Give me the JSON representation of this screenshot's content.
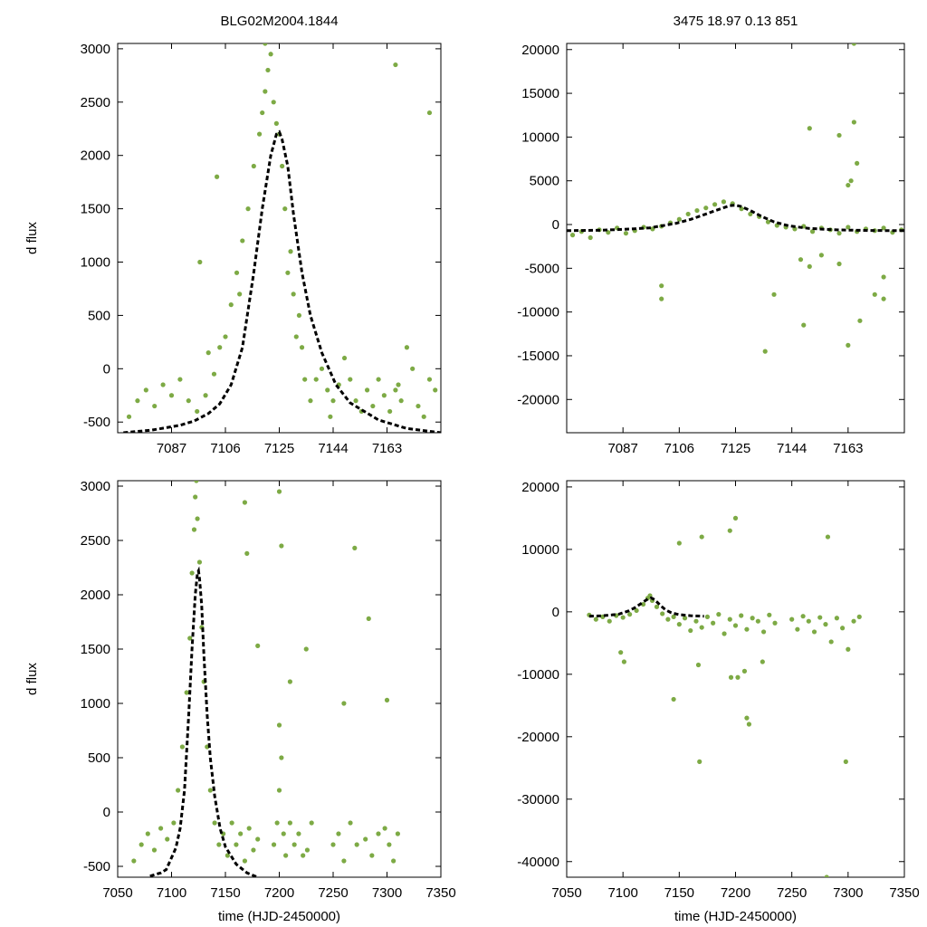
{
  "chart_data": [
    {
      "type": "scatter",
      "panel": "top-left",
      "title": "BLG02M2004.1844",
      "xlabel": "",
      "ylabel": "d flux",
      "xlim": [
        7068,
        7182
      ],
      "ylim": [
        -600,
        3050
      ],
      "xticks": [
        7087,
        7106,
        7125,
        7144,
        7163
      ],
      "yticks": [
        -500,
        0,
        500,
        1000,
        1500,
        2000,
        2500,
        3000
      ],
      "series": [
        {
          "name": "observations",
          "style": "points",
          "color": "#7daa45",
          "x": [
            7072,
            7075,
            7078,
            7081,
            7084,
            7087,
            7090,
            7093,
            7096,
            7099,
            7100,
            7102,
            7104,
            7106,
            7108,
            7110,
            7112,
            7114,
            7116,
            7118,
            7119,
            7120,
            7121,
            7122,
            7123,
            7124,
            7125,
            7126,
            7127,
            7128,
            7129,
            7130,
            7131,
            7132,
            7133,
            7134,
            7136,
            7138,
            7140,
            7142,
            7144,
            7146,
            7148,
            7150,
            7152,
            7154,
            7156,
            7158,
            7160,
            7162,
            7164,
            7166,
            7168,
            7170,
            7172,
            7174,
            7176,
            7178,
            7180,
            7097,
            7103,
            7111,
            7120,
            7143,
            7166,
            7178,
            7167
          ],
          "y": [
            -450,
            -300,
            -200,
            -350,
            -150,
            -250,
            -100,
            -300,
            -400,
            -250,
            150,
            -50,
            200,
            300,
            600,
            900,
            1200,
            1500,
            1900,
            2200,
            2400,
            2600,
            2800,
            2950,
            2500,
            2300,
            2200,
            1900,
            1500,
            900,
            1100,
            700,
            300,
            500,
            200,
            -100,
            -300,
            -100,
            0,
            -200,
            -300,
            -150,
            100,
            -100,
            -300,
            -400,
            -200,
            -350,
            -100,
            -250,
            -400,
            -200,
            -300,
            200,
            0,
            -350,
            -450,
            -100,
            -200,
            1000,
            1800,
            700,
            3050,
            -450,
            2850,
            2400,
            -150
          ]
        },
        {
          "name": "model",
          "style": "dashed-line",
          "color": "#000000",
          "x": [
            7070,
            7080,
            7090,
            7095,
            7100,
            7104,
            7108,
            7112,
            7116,
            7119,
            7122,
            7124,
            7125,
            7126,
            7128,
            7130,
            7133,
            7136,
            7140,
            7145,
            7150,
            7160,
            7170,
            7182
          ],
          "y": [
            -600,
            -575,
            -530,
            -490,
            -420,
            -330,
            -150,
            200,
            900,
            1500,
            2000,
            2200,
            2220,
            2150,
            1900,
            1450,
            900,
            500,
            150,
            -150,
            -320,
            -480,
            -560,
            -600
          ]
        }
      ]
    },
    {
      "type": "scatter",
      "panel": "top-right",
      "title": "3475  18.97  0.13  851",
      "xlabel": "",
      "ylabel": "",
      "xlim": [
        7068,
        7182
      ],
      "ylim": [
        -23800,
        20700
      ],
      "xticks": [
        7087,
        7106,
        7125,
        7144,
        7163
      ],
      "yticks": [
        -20000,
        -15000,
        -10000,
        -5000,
        0,
        5000,
        10000,
        15000,
        20000
      ],
      "series": [
        {
          "name": "observations",
          "style": "points",
          "color": "#7daa45",
          "x": [
            7070,
            7073,
            7076,
            7079,
            7082,
            7085,
            7088,
            7091,
            7094,
            7097,
            7100,
            7103,
            7106,
            7109,
            7112,
            7115,
            7118,
            7121,
            7124,
            7127,
            7130,
            7133,
            7136,
            7139,
            7142,
            7145,
            7148,
            7151,
            7154,
            7157,
            7160,
            7163,
            7166,
            7169,
            7172,
            7175,
            7178,
            7181,
            7100,
            7100,
            7135,
            7138,
            7148,
            7150,
            7147,
            7160,
            7163,
            7164,
            7165,
            7166,
            7167,
            7172,
            7175,
            7175,
            7150,
            7163,
            7160,
            7154,
            7165
          ],
          "y": [
            -1200,
            -800,
            -1500,
            -600,
            -900,
            -400,
            -1000,
            -700,
            -300,
            -500,
            -200,
            200,
            600,
            1200,
            1600,
            1900,
            2300,
            2600,
            2400,
            1800,
            1200,
            900,
            300,
            -100,
            -300,
            -500,
            -200,
            -800,
            -400,
            -600,
            -1000,
            -300,
            -800,
            -500,
            -700,
            -400,
            -900,
            -600,
            -7000,
            -8500,
            -14500,
            -8000,
            -11500,
            11000,
            -4000,
            10200,
            4500,
            5000,
            11700,
            7000,
            -11000,
            -8000,
            -8500,
            -6000,
            -4800,
            -13800,
            -4500,
            -3500,
            20700
          ]
        },
        {
          "name": "model",
          "style": "dashed-line",
          "color": "#000000",
          "x": [
            7068,
            7080,
            7090,
            7096,
            7100,
            7105,
            7110,
            7115,
            7120,
            7123,
            7125,
            7127,
            7130,
            7134,
            7138,
            7143,
            7150,
            7160,
            7170,
            7182
          ],
          "y": [
            -700,
            -650,
            -500,
            -380,
            -150,
            150,
            600,
            1200,
            1800,
            2150,
            2220,
            2050,
            1600,
            900,
            300,
            -150,
            -450,
            -620,
            -680,
            -700
          ]
        }
      ]
    },
    {
      "type": "scatter",
      "panel": "bottom-left",
      "title": "",
      "xlabel": "time (HJD-2450000)",
      "ylabel": "d flux",
      "xlim": [
        7050,
        7350
      ],
      "ylim": [
        -600,
        3050
      ],
      "xticks": [
        7050,
        7100,
        7150,
        7200,
        7250,
        7300,
        7350
      ],
      "yticks": [
        -500,
        0,
        500,
        1000,
        1500,
        2000,
        2500,
        3000
      ],
      "series": [
        {
          "name": "observations",
          "style": "points",
          "color": "#7daa45",
          "x": [
            7065,
            7072,
            7078,
            7084,
            7090,
            7096,
            7102,
            7106,
            7110,
            7114,
            7117,
            7119,
            7121,
            7122,
            7123,
            7124,
            7126,
            7128,
            7130,
            7133,
            7136,
            7140,
            7144,
            7148,
            7152,
            7156,
            7160,
            7164,
            7168,
            7172,
            7176,
            7180,
            7195,
            7198,
            7200,
            7202,
            7204,
            7206,
            7210,
            7214,
            7218,
            7222,
            7226,
            7230,
            7250,
            7255,
            7260,
            7266,
            7272,
            7280,
            7286,
            7292,
            7298,
            7302,
            7306,
            7310,
            7168,
            7170,
            7200,
            7202,
            7210,
            7225,
            7200,
            7270,
            7283,
            7300,
            7260,
            7180
          ],
          "y": [
            -450,
            -300,
            -200,
            -350,
            -150,
            -250,
            -100,
            200,
            600,
            1100,
            1600,
            2200,
            2600,
            2900,
            3050,
            2700,
            2300,
            1700,
            1200,
            600,
            200,
            -100,
            -300,
            -200,
            -400,
            -100,
            -300,
            -200,
            -450,
            -150,
            -350,
            -250,
            -300,
            -100,
            200,
            500,
            -200,
            -400,
            -100,
            -300,
            -200,
            -400,
            -350,
            -100,
            -300,
            -200,
            -450,
            -100,
            -300,
            -250,
            -400,
            -200,
            -150,
            -300,
            -450,
            -200,
            2850,
            2380,
            2950,
            2450,
            1200,
            1500,
            800,
            2430,
            1780,
            1030,
            1000,
            1530
          ]
        },
        {
          "name": "model",
          "style": "dashed-line",
          "color": "#000000",
          "x": [
            7080,
            7090,
            7095,
            7100,
            7104,
            7108,
            7112,
            7116,
            7119,
            7122,
            7124,
            7125,
            7126,
            7128,
            7130,
            7133,
            7136,
            7140,
            7145,
            7150,
            7160,
            7170,
            7180
          ],
          "y": [
            -590,
            -560,
            -530,
            -420,
            -330,
            -150,
            200,
            900,
            1500,
            2000,
            2200,
            2220,
            2150,
            1900,
            1450,
            900,
            500,
            150,
            -150,
            -320,
            -480,
            -560,
            -600
          ]
        }
      ]
    },
    {
      "type": "scatter",
      "panel": "bottom-right",
      "title": "",
      "xlabel": "time (HJD-2450000)",
      "ylabel": "",
      "xlim": [
        7050,
        7350
      ],
      "ylim": [
        -42500,
        21000
      ],
      "xticks": [
        7050,
        7100,
        7150,
        7200,
        7250,
        7300,
        7350
      ],
      "yticks": [
        -40000,
        -30000,
        -20000,
        -10000,
        0,
        10000,
        20000
      ],
      "series": [
        {
          "name": "observations",
          "style": "points",
          "color": "#7daa45",
          "x": [
            7070,
            7076,
            7082,
            7088,
            7094,
            7100,
            7106,
            7112,
            7118,
            7122,
            7124,
            7126,
            7130,
            7135,
            7140,
            7145,
            7150,
            7155,
            7160,
            7165,
            7170,
            7175,
            7180,
            7185,
            7190,
            7195,
            7200,
            7205,
            7210,
            7215,
            7220,
            7225,
            7230,
            7235,
            7250,
            7255,
            7260,
            7265,
            7270,
            7275,
            7280,
            7285,
            7290,
            7295,
            7300,
            7305,
            7310,
            7098,
            7101,
            7145,
            7168,
            7170,
            7167,
            7195,
            7200,
            7202,
            7208,
            7210,
            7212,
            7196,
            7282,
            7298,
            7281,
            7224,
            7150
          ],
          "y": [
            -500,
            -1200,
            -800,
            -1500,
            -600,
            -900,
            -400,
            200,
            1200,
            2200,
            2600,
            1800,
            800,
            -300,
            -1200,
            -800,
            -2000,
            -1000,
            -3000,
            -1500,
            -2500,
            -800,
            -1800,
            -400,
            -3500,
            -1200,
            -2200,
            -600,
            -2800,
            -1000,
            -1500,
            -3200,
            -500,
            -1800,
            -1200,
            -2800,
            -700,
            -1500,
            -3200,
            -900,
            -2000,
            -4800,
            -1000,
            -2600,
            -6000,
            -1500,
            -800,
            -6500,
            -8000,
            -14000,
            -24000,
            12000,
            -8500,
            13000,
            15000,
            -10500,
            -9500,
            -17000,
            -18000,
            -10500,
            12000,
            -24000,
            -42500,
            -8000,
            11000
          ]
        },
        {
          "name": "model",
          "style": "dashed-line",
          "color": "#000000",
          "x": [
            7070,
            7080,
            7090,
            7096,
            7100,
            7105,
            7110,
            7115,
            7120,
            7123,
            7125,
            7127,
            7130,
            7134,
            7138,
            7143,
            7150,
            7160,
            7172
          ],
          "y": [
            -700,
            -650,
            -500,
            -380,
            -150,
            150,
            600,
            1200,
            1800,
            2150,
            2220,
            2050,
            1600,
            900,
            300,
            -150,
            -450,
            -620,
            -700
          ]
        }
      ]
    }
  ]
}
